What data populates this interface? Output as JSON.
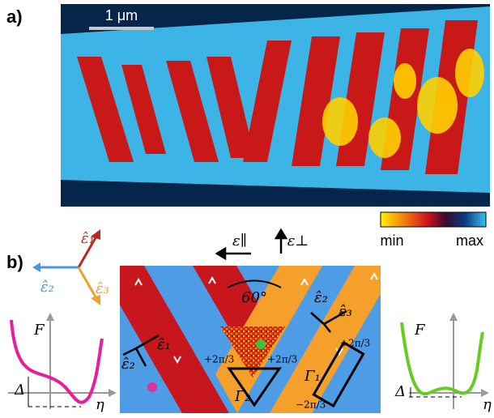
{
  "panel_a": {
    "label": "a)",
    "scale_bar": "1 μm",
    "colorbar": {
      "min": "min",
      "max": "max"
    }
  },
  "panel_b": {
    "label": "b)",
    "basis": [
      "ε̂₁",
      "ε̂₂",
      "ε̂₃"
    ],
    "strain": {
      "parallel": "ε∥",
      "perpendicular": "ε⊥"
    },
    "angle": "60°",
    "diagram": {
      "e1": "ε̂₁",
      "e2": "ε̂₂",
      "e3": "ε̂₃",
      "gamma1": "Γ₁",
      "gamma2": "Γ₂",
      "phase_plus": "+2π/3",
      "phase_minus": "−2π/3"
    },
    "free_energy": {
      "y_label": "F",
      "x_label": "η",
      "gap": "Δ"
    }
  }
}
